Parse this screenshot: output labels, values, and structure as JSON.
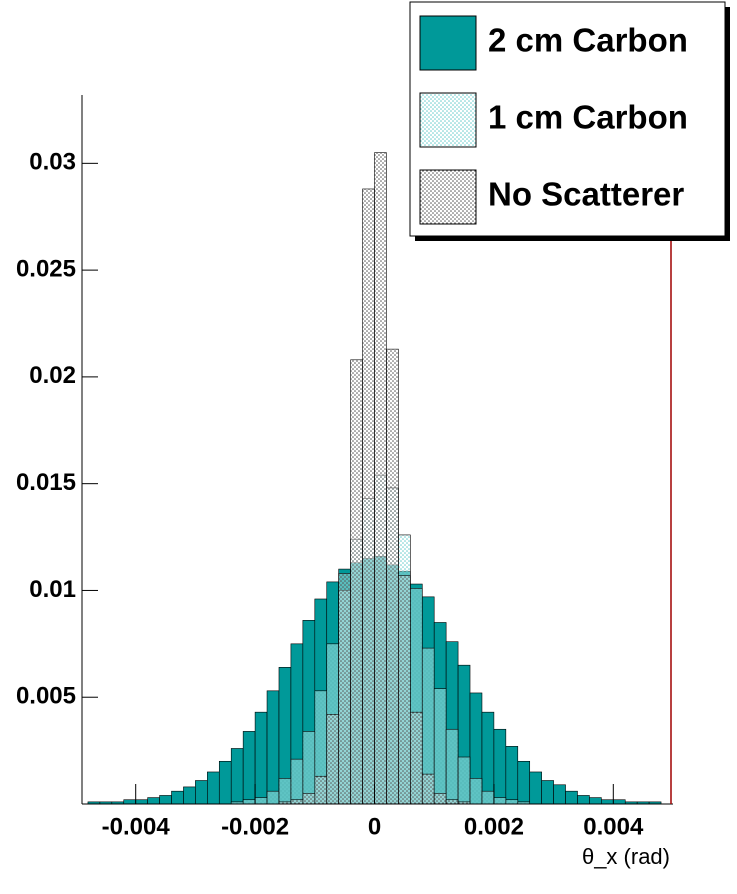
{
  "chart_data": {
    "type": "histogram",
    "x_label": "θ_x (rad)",
    "xlim": [
      -0.005,
      0.005
    ],
    "xticks": [
      -0.004,
      -0.002,
      0,
      0.002,
      0.004
    ],
    "ylim": [
      0,
      0.0332
    ],
    "yticks": [
      0.005,
      0.01,
      0.015,
      0.02,
      0.025,
      0.03
    ],
    "bins": [
      -0.005,
      -0.0048,
      -0.0046,
      -0.0044,
      -0.0042,
      -0.004,
      -0.0038,
      -0.0036,
      -0.0034,
      -0.0032,
      -0.003,
      -0.0028,
      -0.0026,
      -0.0024,
      -0.0022,
      -0.002,
      -0.0018,
      -0.0016,
      -0.0014,
      -0.0012,
      -0.001,
      -0.0008,
      -0.0006,
      -0.0004,
      -0.0002,
      0,
      0.0002,
      0.0004,
      0.0006,
      0.0008,
      0.001,
      0.0012,
      0.0014,
      0.0016,
      0.0018,
      0.002,
      0.0022,
      0.0024,
      0.0026,
      0.0028,
      0.003,
      0.0032,
      0.0034,
      0.0036,
      0.0038,
      0.004,
      0.0042,
      0.0044,
      0.0046,
      0.0048,
      0.005
    ],
    "legend_position": "upper right",
    "series": [
      {
        "name": "2 cm Carbon",
        "color": "#009999",
        "fill_style": "solid",
        "values": [
          0,
          0.0001,
          0.0001,
          0.0001,
          0.0002,
          0.0002,
          0.0003,
          0.0004,
          0.0006,
          0.0008,
          0.0011,
          0.0015,
          0.002,
          0.0026,
          0.0034,
          0.0043,
          0.0053,
          0.0064,
          0.0075,
          0.0086,
          0.0096,
          0.0104,
          0.011,
          0.0113,
          0.0115,
          0.0116,
          0.0112,
          0.0109,
          0.0103,
          0.0097,
          0.0085,
          0.0076,
          0.0065,
          0.0052,
          0.0043,
          0.0035,
          0.0027,
          0.002,
          0.0015,
          0.0011,
          0.0009,
          0.0006,
          0.0004,
          0.0003,
          0.0002,
          0.0002,
          0.0001,
          0.0001,
          0.0001,
          0
        ]
      },
      {
        "name": "1 cm Carbon",
        "color": "#66cccc",
        "fill_style": "hatch",
        "values": [
          0,
          0,
          0,
          0,
          0,
          0,
          0,
          0,
          0,
          0,
          0,
          0,
          0,
          0.0001,
          0.0002,
          0.0003,
          0.0006,
          0.0012,
          0.0021,
          0.0034,
          0.0053,
          0.0075,
          0.01,
          0.0124,
          0.0143,
          0.0154,
          0.0148,
          0.0126,
          0.0101,
          0.0073,
          0.0054,
          0.0035,
          0.0022,
          0.0012,
          0.0006,
          0.0003,
          0.0002,
          0.0001,
          0,
          0,
          0,
          0,
          0,
          0,
          0,
          0,
          0,
          0,
          0,
          0
        ]
      },
      {
        "name": "No Scatterer",
        "color": "#555555",
        "fill_style": "hatch",
        "values": [
          0,
          0,
          0,
          0,
          0,
          0,
          0,
          0,
          0,
          0,
          0,
          0,
          0,
          0,
          0,
          0,
          0,
          0.0001,
          0.0002,
          0.0005,
          0.0013,
          0.0042,
          0.0108,
          0.0208,
          0.0288,
          0.0305,
          0.0213,
          0.0107,
          0.0043,
          0.0014,
          0.0005,
          0.0002,
          0.0001,
          0,
          0,
          0,
          0,
          0,
          0,
          0,
          0,
          0,
          0,
          0,
          0,
          0,
          0,
          0,
          0,
          0
        ]
      }
    ]
  }
}
